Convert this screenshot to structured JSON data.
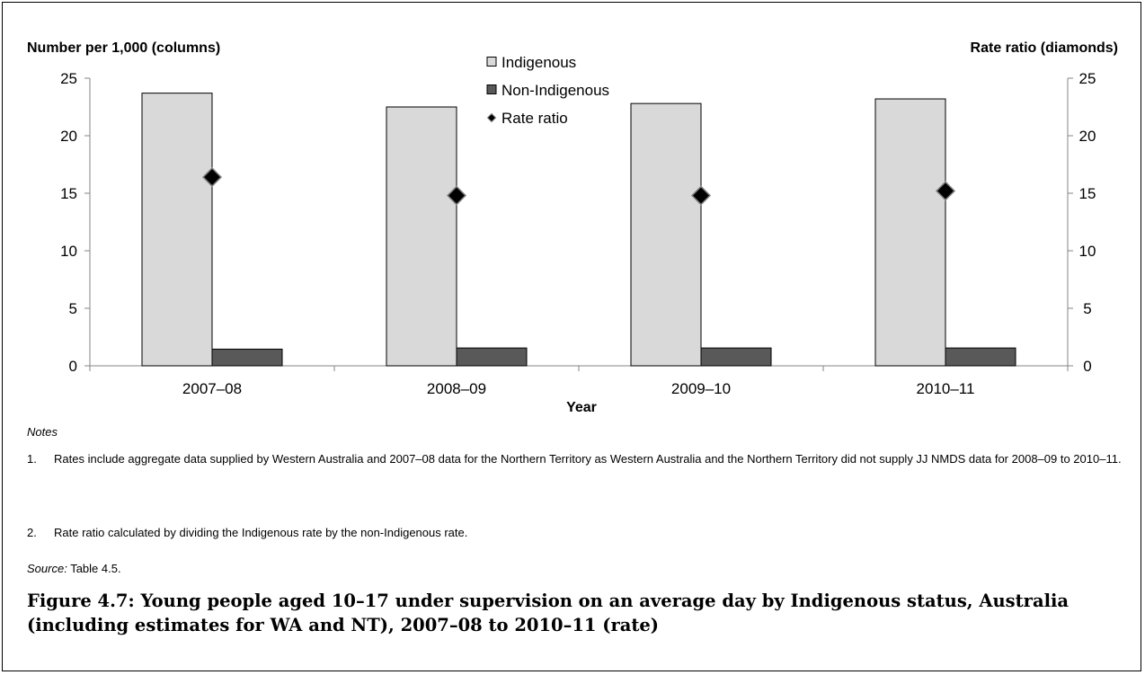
{
  "chart_data": {
    "type": "bar",
    "categories": [
      "2007–08",
      "2008–09",
      "2009–10",
      "2010–11"
    ],
    "series": [
      {
        "name": "Indigenous",
        "values": [
          23.7,
          22.5,
          22.8,
          23.2
        ],
        "color": "#d9d9d9",
        "axis": "left"
      },
      {
        "name": "Non-Indigenous",
        "values": [
          1.45,
          1.55,
          1.55,
          1.55
        ],
        "color": "#595959",
        "axis": "left"
      },
      {
        "name": "Rate ratio",
        "values": [
          16.4,
          14.8,
          14.8,
          15.2
        ],
        "color": "#000000",
        "marker": "diamond",
        "axis": "right"
      }
    ],
    "ylabel_left": "Number per 1,000 (columns)",
    "ylabel_right": "Rate ratio (diamonds)",
    "xlabel": "Year",
    "ylim": [
      0,
      25
    ],
    "y2lim": [
      0,
      25
    ],
    "yticks": [
      "0",
      "5",
      "10",
      "15",
      "20",
      "25"
    ],
    "y2ticks": [
      "0",
      "5",
      "10",
      "15",
      "20",
      "25"
    ],
    "grid": false,
    "legend_position": "top-center"
  },
  "notes": {
    "heading": "Notes",
    "items": [
      {
        "num": "1.",
        "text": "Rates include aggregate data supplied by Western Australia and 2007–08 data for the Northern Territory as Western Australia and the Northern Territory did not supply JJ NMDS data for 2008–09 to 2010–11."
      },
      {
        "num": "2.",
        "text": "Rate ratio calculated by dividing the Indigenous rate by the non-Indigenous rate."
      }
    ]
  },
  "source": {
    "label": "Source:",
    "text": " Table 4.5."
  },
  "caption": "Figure 4.7: Young people aged 10–17 under supervision on an average day by Indigenous status, Australia (including estimates for WA and NT), 2007–08 to 2010–11 (rate)"
}
